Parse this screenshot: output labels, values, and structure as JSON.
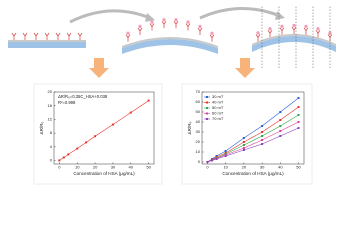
{
  "chart_data": [
    {
      "type": "line",
      "xlabel": "Concentration of HSA (μg/mL)",
      "ylabel": "ΔR/R₀",
      "annotations": [
        "ΔR/R₀=0.35C_HSA+0.038",
        "R²=0.998"
      ],
      "x": [
        0,
        2.5,
        5,
        10,
        15,
        20,
        30,
        40,
        50
      ],
      "values": [
        0.04,
        0.9,
        1.8,
        3.5,
        5.3,
        7.1,
        10.5,
        14,
        17.5
      ],
      "color": "#e8322b",
      "xlim": [
        -3,
        53
      ],
      "ylim": [
        -1,
        20
      ],
      "xticks": [
        0,
        10,
        20,
        30,
        40,
        50
      ],
      "yticks": [
        0,
        4,
        8,
        12,
        16,
        20
      ]
    },
    {
      "type": "line",
      "xlabel": "Concentration of HSA (μg/mL)",
      "ylabel": "ΔR/R₀",
      "x": [
        0,
        2.5,
        5,
        10,
        20,
        30,
        40,
        50
      ],
      "series": [
        {
          "name": "30 mT",
          "color": "#2b5fd9",
          "values": [
            0,
            3,
            6,
            11,
            24,
            36,
            50,
            64
          ]
        },
        {
          "name": "40 mT",
          "color": "#e8322b",
          "values": [
            0,
            2.5,
            5,
            9,
            20,
            30,
            42,
            55
          ]
        },
        {
          "name": "50 mT",
          "color": "#2ea84a",
          "values": [
            0,
            2,
            4,
            8,
            17,
            26,
            36,
            47
          ]
        },
        {
          "name": "60 mT",
          "color": "#e0409a",
          "values": [
            0,
            1.8,
            3.5,
            7,
            14,
            22,
            31,
            40
          ]
        },
        {
          "name": "70 mT",
          "color": "#8a3fc4",
          "values": [
            0,
            1.5,
            3,
            6,
            12,
            18,
            26,
            34
          ]
        }
      ],
      "legend": "upper left",
      "xlim": [
        -3,
        53
      ],
      "ylim": [
        -2,
        70
      ],
      "xticks": [
        0,
        10,
        20,
        30,
        40,
        50
      ],
      "yticks": [
        0,
        10,
        20,
        30,
        40,
        50,
        60,
        70
      ]
    }
  ]
}
